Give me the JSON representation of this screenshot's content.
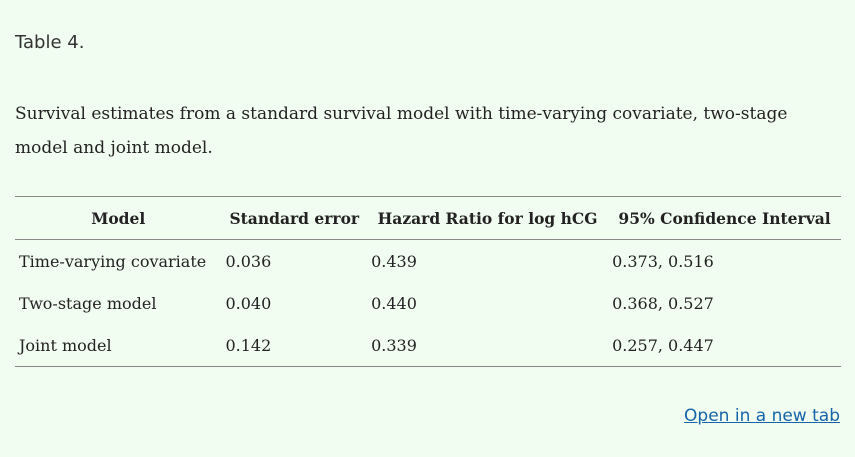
{
  "label": "Table 4.",
  "caption": "Survival estimates from a standard survival model with time-varying covariate, two-stage model and joint model.",
  "table": {
    "header": [
      "Model",
      "Standard error",
      "Hazard Ratio for log hCG",
      "95% Confidence Interval"
    ],
    "rows": [
      [
        "Time-varying covariate",
        "0.036",
        "0.439",
        "0.373, 0.516"
      ],
      [
        "Two-stage model",
        "0.040",
        "0.440",
        "0.368, 0.527"
      ],
      [
        "Joint model",
        "0.142",
        "0.339",
        "0.257, 0.447"
      ]
    ]
  },
  "link": "Open in a new tab"
}
